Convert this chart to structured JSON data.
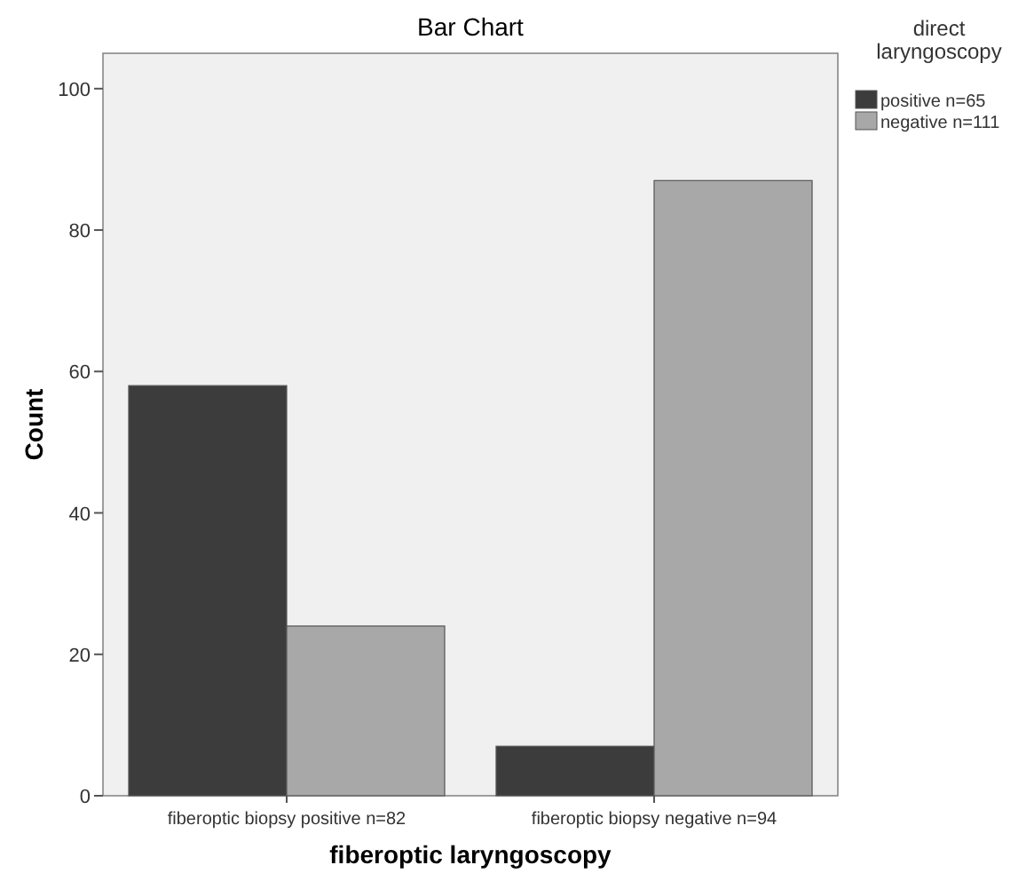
{
  "chart_data": {
    "type": "bar",
    "title": "Bar Chart",
    "xlabel": "fiberoptic laryngoscopy",
    "ylabel": "Count",
    "legend_title": "direct laryngoscopy",
    "categories": [
      "fiberoptic biopsy positive n=82",
      "fiberoptic biopsy negative n=94"
    ],
    "series": [
      {
        "name": "positive n=65",
        "color": "#3c3c3c",
        "values": [
          58,
          7
        ]
      },
      {
        "name": "negative n=111",
        "color": "#a8a8a8",
        "values": [
          24,
          87
        ]
      }
    ],
    "ylim": [
      0,
      105
    ],
    "yticks": [
      0,
      20,
      40,
      60,
      80,
      100
    ],
    "grid": false,
    "legend": "top right"
  }
}
